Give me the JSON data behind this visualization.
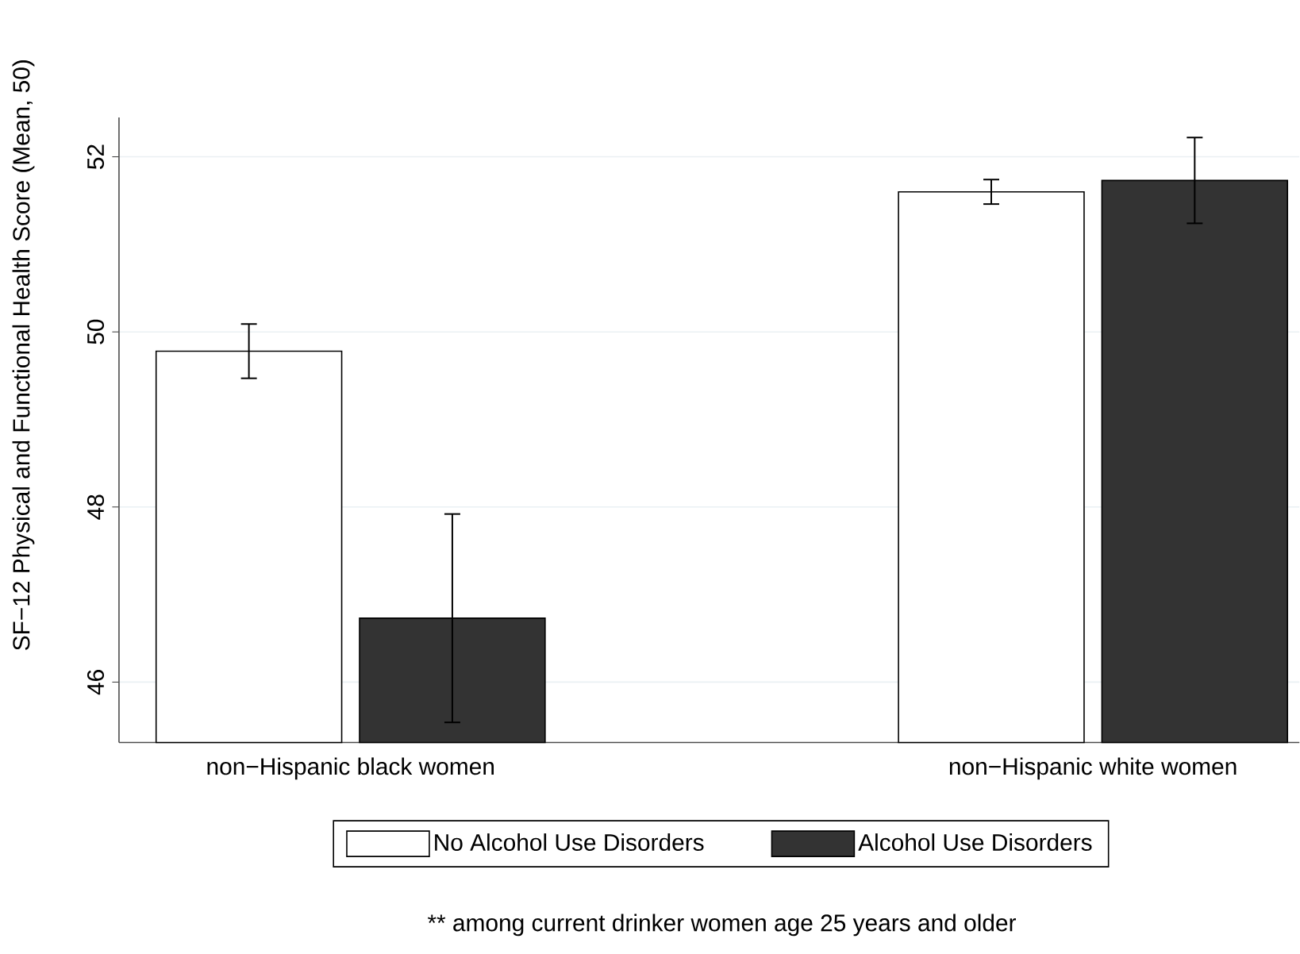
{
  "chart_data": {
    "type": "bar",
    "categories": [
      "non−Hispanic black women",
      "non−Hispanic white women"
    ],
    "ylabel": "SF−12 Physical and Functional Health Score (Mean, 50)",
    "series": [
      {
        "name": "No Alcohol Use Disorders",
        "color": "#ffffff",
        "values": [
          49.78,
          51.6
        ],
        "errors": [
          0.31,
          0.14
        ]
      },
      {
        "name": "Alcohol Use Disorders",
        "color": "#333333",
        "values": [
          46.73,
          51.73
        ],
        "errors": [
          1.19,
          0.49
        ]
      }
    ],
    "ylim": [
      45.31,
      52.45
    ],
    "yticks": [
      46,
      48,
      50,
      52
    ],
    "grid": "y",
    "legend": "bottom",
    "annotations": [
      "** among current drinker women age 25 years and older"
    ]
  }
}
